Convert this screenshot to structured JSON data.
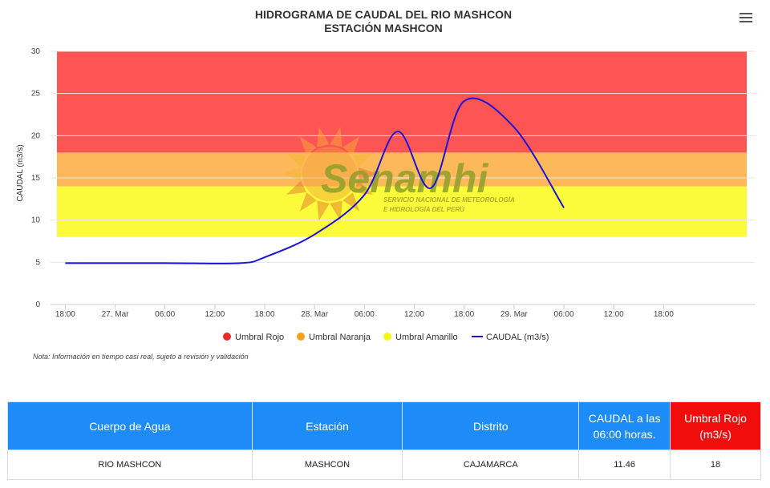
{
  "chart_data": {
    "type": "line",
    "title": [
      "HIDROGRAMA DE CAUDAL DEL RIO MASHCON",
      "ESTACIÓN MASHCON"
    ],
    "ylabel": "CAUDAL (m3/s)",
    "ylim": [
      0,
      30
    ],
    "yticks": [
      0,
      5,
      10,
      15,
      20,
      25,
      30
    ],
    "xlim": [
      "2024-03-26 17:00",
      "2024-03-30 04:00"
    ],
    "xticks": [
      {
        "t": "2024-03-26 18:00",
        "label": "18:00"
      },
      {
        "t": "2024-03-27 00:00",
        "label": "27. Mar"
      },
      {
        "t": "2024-03-27 06:00",
        "label": "06:00"
      },
      {
        "t": "2024-03-27 12:00",
        "label": "12:00"
      },
      {
        "t": "2024-03-27 18:00",
        "label": "18:00"
      },
      {
        "t": "2024-03-28 00:00",
        "label": "28. Mar"
      },
      {
        "t": "2024-03-28 06:00",
        "label": "06:00"
      },
      {
        "t": "2024-03-28 12:00",
        "label": "12:00"
      },
      {
        "t": "2024-03-28 18:00",
        "label": "18:00"
      },
      {
        "t": "2024-03-29 00:00",
        "label": "29. Mar"
      },
      {
        "t": "2024-03-29 06:00",
        "label": "06:00"
      },
      {
        "t": "2024-03-29 12:00",
        "label": "12:00"
      },
      {
        "t": "2024-03-29 18:00",
        "label": "18:00"
      }
    ],
    "bands": [
      {
        "name": "Umbral Amarillo",
        "from": 8,
        "to": 14,
        "color": "#fbfb3c"
      },
      {
        "name": "Umbral Naranja",
        "from": 14,
        "to": 18,
        "color": "#fdb85a"
      },
      {
        "name": "Umbral Rojo",
        "from": 18,
        "to": 30,
        "color": "#fd5454"
      }
    ],
    "series": [
      {
        "name": "CAUDAL (m3/s)",
        "color": "#1a14d8",
        "points": [
          {
            "t": "2024-03-26 18:00",
            "y": 4.9
          },
          {
            "t": "2024-03-27 06:00",
            "y": 4.9
          },
          {
            "t": "2024-03-27 15:00",
            "y": 4.9
          },
          {
            "t": "2024-03-27 18:00",
            "y": 5.6
          },
          {
            "t": "2024-03-28 00:00",
            "y": 8.3
          },
          {
            "t": "2024-03-28 06:00",
            "y": 13.0
          },
          {
            "t": "2024-03-28 10:00",
            "y": 20.5
          },
          {
            "t": "2024-03-28 14:00",
            "y": 13.8
          },
          {
            "t": "2024-03-28 18:00",
            "y": 24.1
          },
          {
            "t": "2024-03-29 00:00",
            "y": 21.0
          },
          {
            "t": "2024-03-29 06:00",
            "y": 11.46
          }
        ]
      }
    ],
    "legend": {
      "position": "bottom",
      "items": [
        {
          "label": "Umbral Rojo",
          "color": "#e82a2a"
        },
        {
          "label": "Umbral Naranja",
          "color": "#f7a01e"
        },
        {
          "label": "Umbral Amarillo",
          "color": "#f5f51a"
        },
        {
          "label": "CAUDAL (m3/s)",
          "color": "#1a14d8"
        }
      ]
    },
    "grid": true
  },
  "watermark": {
    "brand": "Senamhi",
    "subtitle": [
      "SERVICIO NACIONAL DE METEOROLOGÍA",
      "E HIDROLOGÍA DEL PERÚ"
    ]
  },
  "note": "Nota: Información en tiempo casi real, sujeto a revisión y validación",
  "table": {
    "headers": [
      {
        "label": "Cuerpo de Agua",
        "color": "#1d8cf8"
      },
      {
        "label": "Estación",
        "color": "#1d8cf8"
      },
      {
        "label": "Distrito",
        "color": "#1d8cf8"
      },
      {
        "label": "CAUDAL a las 06:00 horas.",
        "color": "#1d8cf8"
      },
      {
        "label": "Umbral Rojo (m3/s)",
        "color": "#f20d0d"
      }
    ],
    "row": [
      "RIO MASHCON",
      "MASHCON",
      "CAJAMARCA",
      "11.46",
      "18"
    ]
  }
}
